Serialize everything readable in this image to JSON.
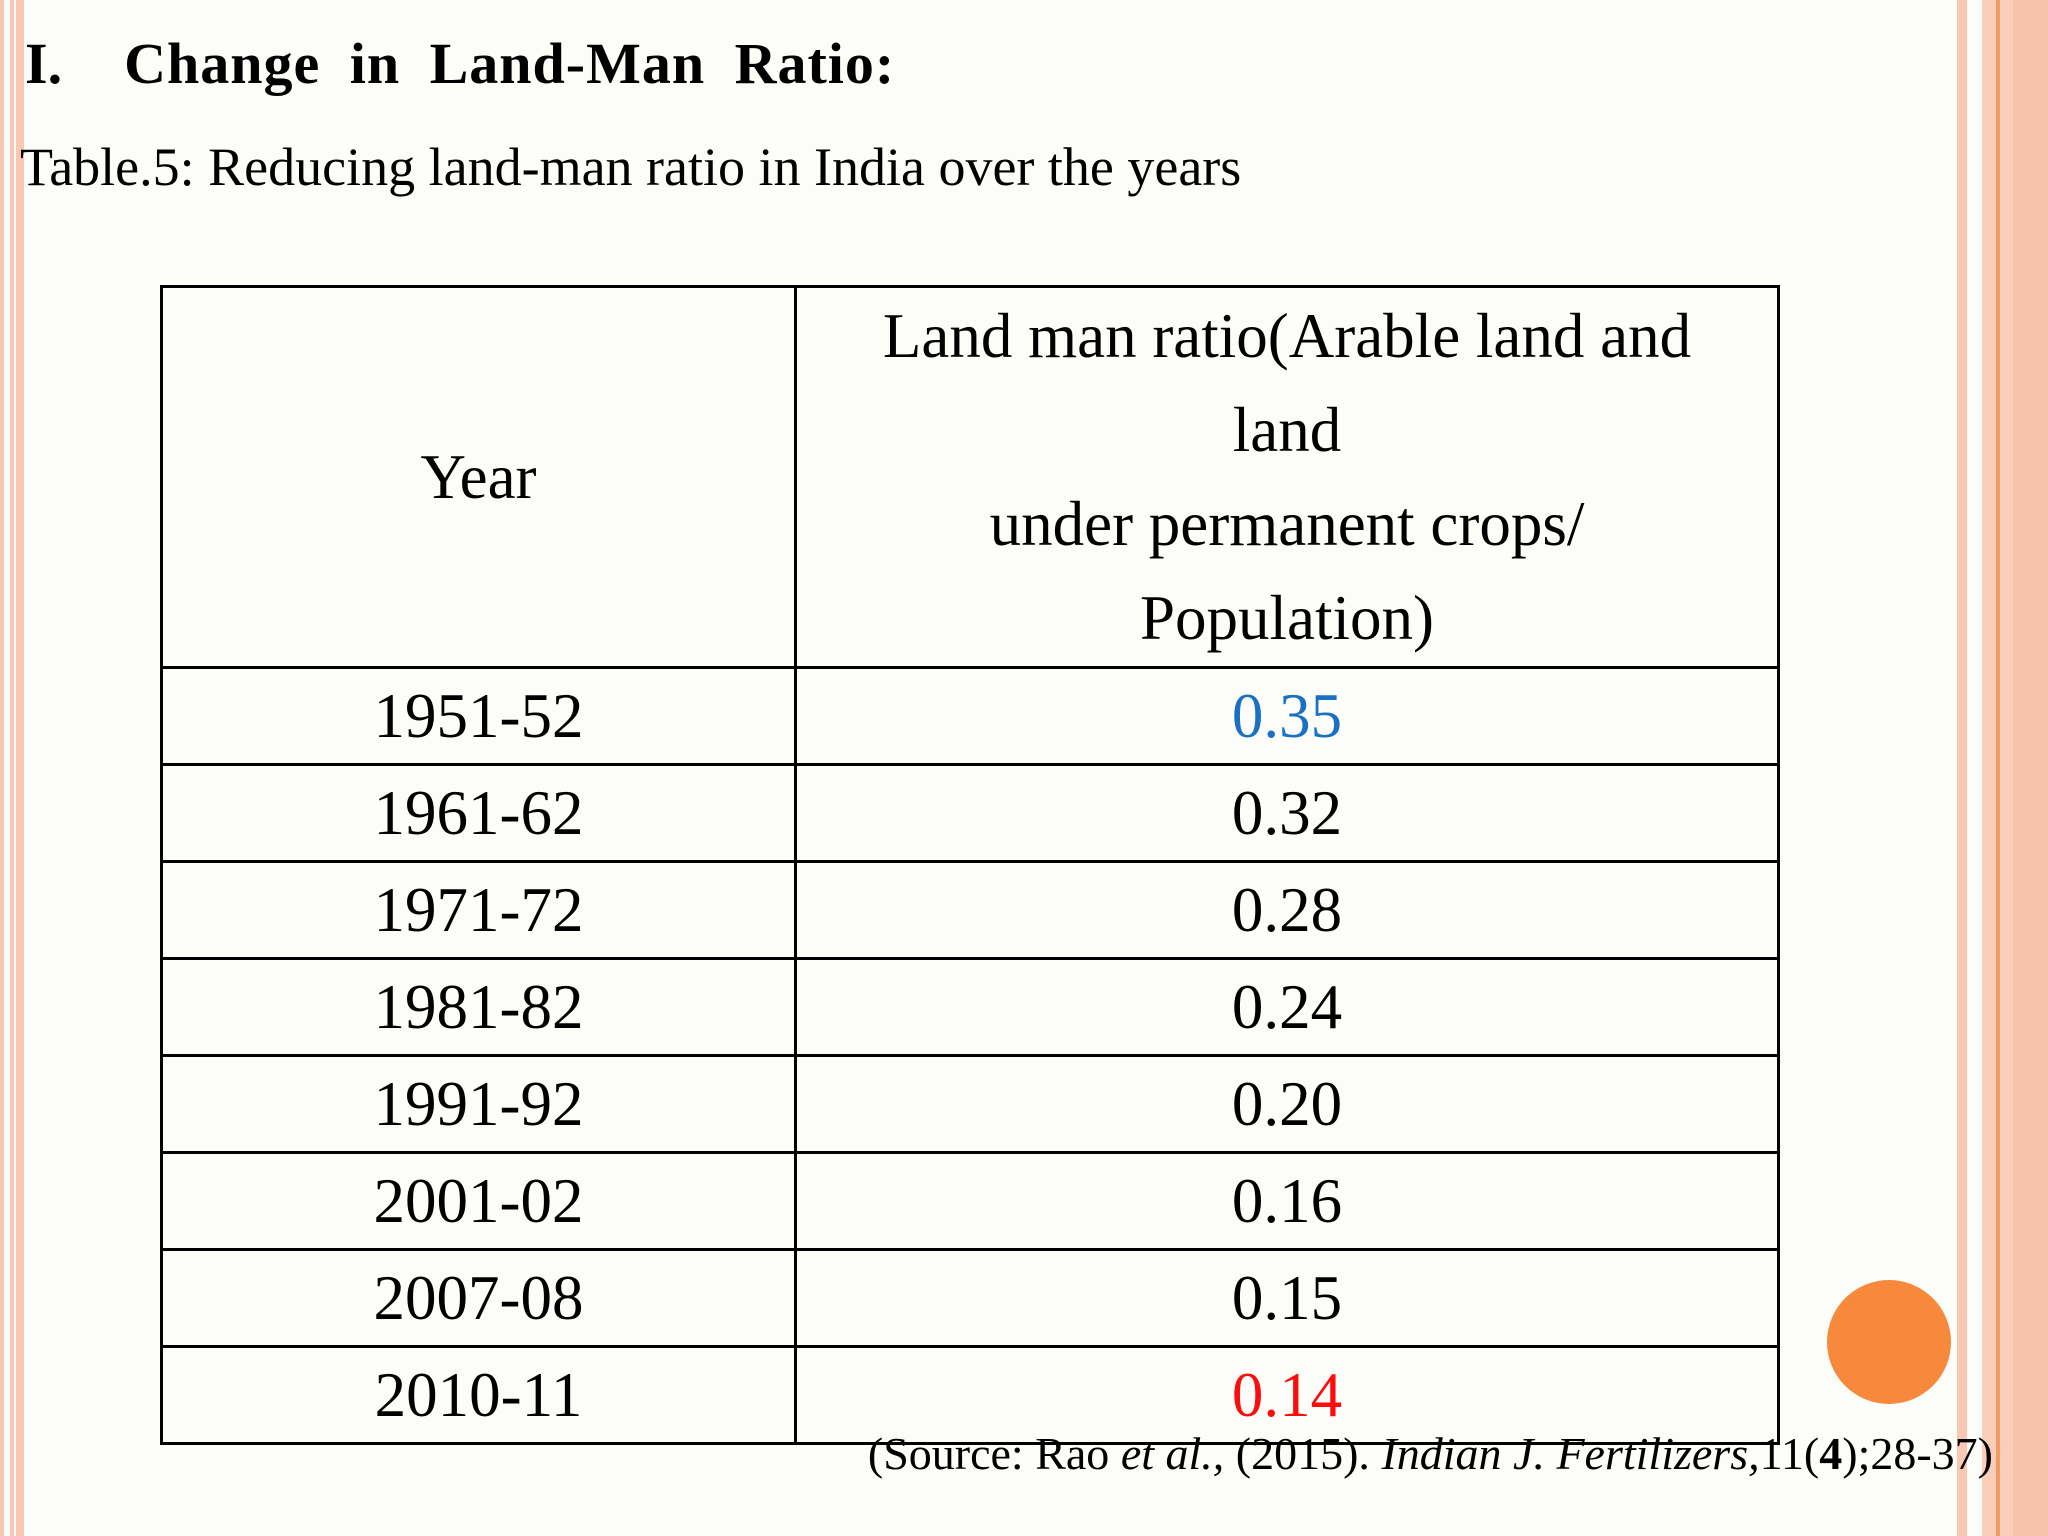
{
  "slide": {
    "title_number": "I.",
    "title": "Change  in  Land-Man Ratio:",
    "subtitle": "Table.5: Reducing land-man ratio in India over the years"
  },
  "table": {
    "col1_header": "Year",
    "col2_header_lines": [
      "Land man ratio(Arable land and",
      "land",
      "under permanent crops/",
      "Population)"
    ],
    "rows": [
      {
        "year": "1951-52",
        "value": "0.35",
        "value_color": "#1a70c2"
      },
      {
        "year": "1961-62",
        "value": "0.32",
        "value_color": ""
      },
      {
        "year": "1971-72",
        "value": "0.28",
        "value_color": ""
      },
      {
        "year": "1981-82",
        "value": "0.24",
        "value_color": ""
      },
      {
        "year": "1991-92",
        "value": "0.20",
        "value_color": ""
      },
      {
        "year": "2001-02",
        "value": "0.16",
        "value_color": ""
      },
      {
        "year": "2007-08",
        "value": "0.15",
        "value_color": ""
      },
      {
        "year": "2010-11",
        "value": "0.14",
        "value_color": "#fb0d0d"
      }
    ]
  },
  "source": {
    "segments": [
      {
        "text": "(Source: Rao ",
        "style": "normal"
      },
      {
        "text": "et al., ",
        "style": "italic"
      },
      {
        "text": "(2015). ",
        "style": "normal"
      },
      {
        "text": "Indian J. Fertilizers,",
        "style": "italic"
      },
      {
        "text": "11(",
        "style": "normal"
      },
      {
        "text": "4",
        "style": "bold"
      },
      {
        "text": ");28-37)",
        "style": "normal"
      }
    ]
  },
  "colors": {
    "highlight_blue": "#1a70c2",
    "highlight_red": "#fb0d0d",
    "edge_stripe_salmon": "#f9c7b2",
    "edge_band_salmon": "#fbceba",
    "edge_line_orange": "#f19a63",
    "circle_orange": "#f6893c",
    "background": "#fcfdf8",
    "text": "#000000"
  }
}
